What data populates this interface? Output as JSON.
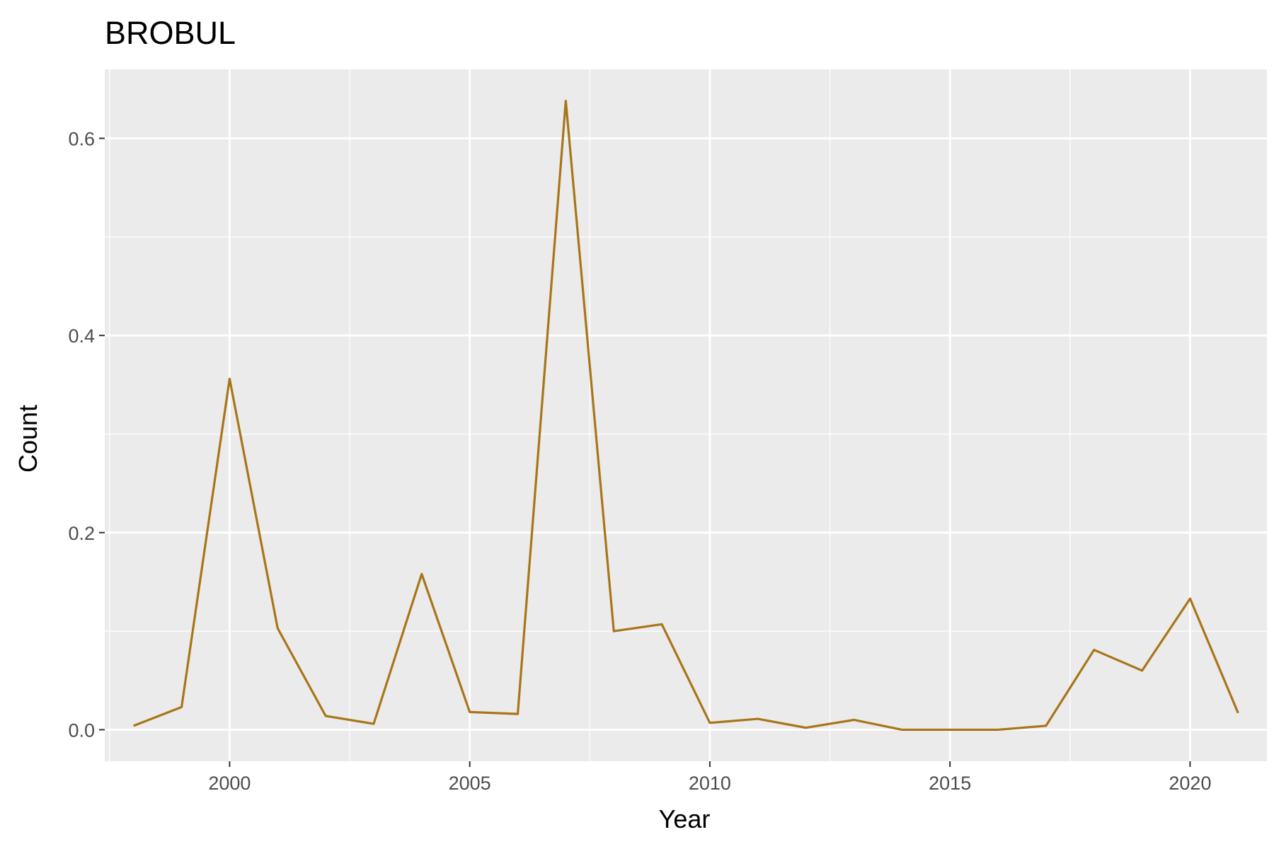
{
  "chart_data": {
    "type": "line",
    "title": "BROBUL",
    "xlabel": "Year",
    "ylabel": "Count",
    "xlim": [
      1997.4,
      2021.6
    ],
    "ylim": [
      -0.032,
      0.67
    ],
    "x_ticks": [
      2000,
      2005,
      2010,
      2015,
      2020
    ],
    "x_tick_labels": [
      "2000",
      "2005",
      "2010",
      "2015",
      "2020"
    ],
    "y_ticks": [
      0.0,
      0.2,
      0.4,
      0.6
    ],
    "y_tick_labels": [
      "0.0",
      "0.2",
      "0.4",
      "0.6"
    ],
    "grid": true,
    "background": "#ebebeb",
    "series": [
      {
        "color": "#a87519",
        "x": [
          1998,
          1999,
          2000,
          2001,
          2002,
          2003,
          2004,
          2005,
          2006,
          2007,
          2008,
          2009,
          2010,
          2011,
          2012,
          2013,
          2014,
          2015,
          2016,
          2017,
          2018,
          2019,
          2020,
          2021
        ],
        "values": [
          0.004,
          0.023,
          0.356,
          0.103,
          0.014,
          0.006,
          0.158,
          0.018,
          0.016,
          0.638,
          0.1,
          0.107,
          0.007,
          0.011,
          0.002,
          0.01,
          0.0,
          0.0,
          0.0,
          0.004,
          0.081,
          0.06,
          0.133,
          0.017
        ]
      }
    ]
  }
}
